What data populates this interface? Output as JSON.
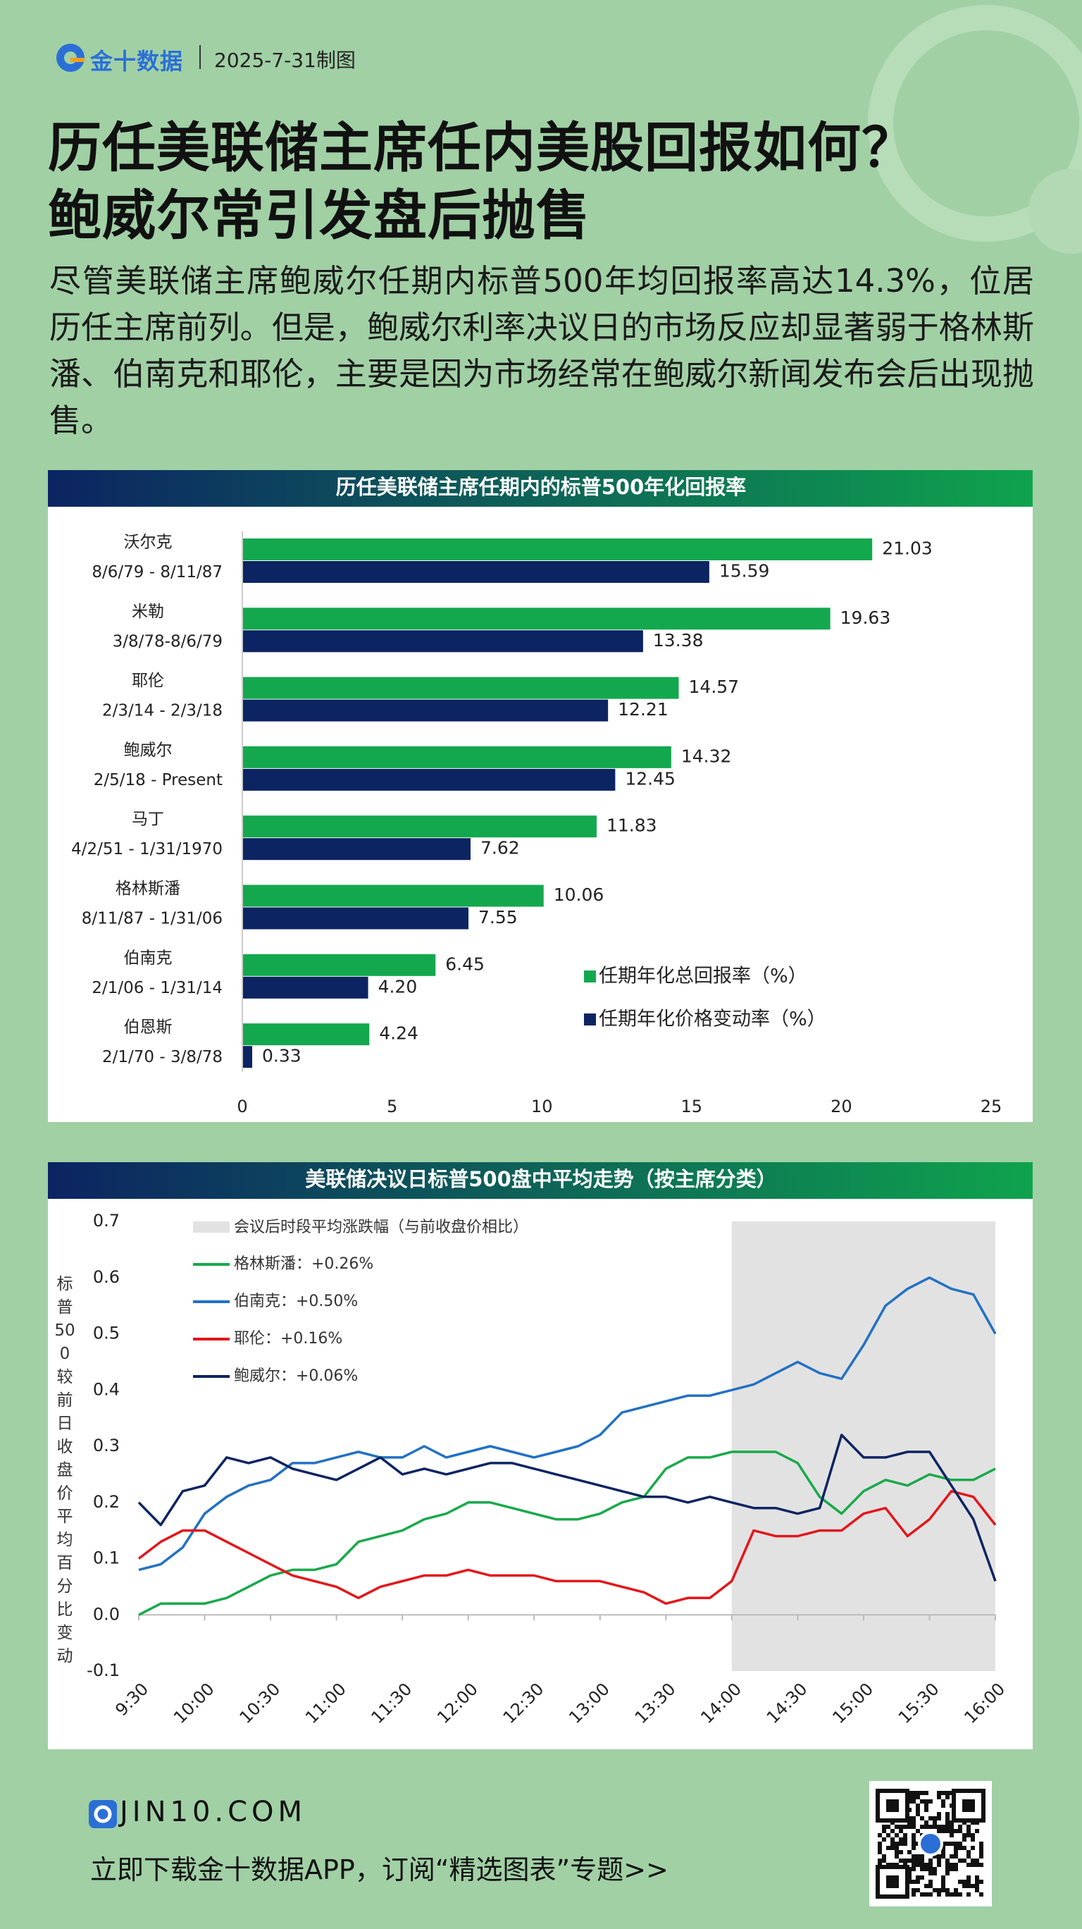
{
  "header": {
    "brand": "金十数据",
    "date": "2025-7-31制图",
    "title": [
      "历任美联储主席任内美股回报如何？",
      "鲍威尔常引发盘后抛售"
    ],
    "summary": "尽管美联储主席鲍威尔任期内标普500年均回报率高达14.3%，位居历任主席前列。但是，鲍威尔利率决议日的市场反应却显著弱于格林斯潘、伯南克和耶伦，主要是因为市场经常在鲍威尔新闻发布会后出现抛售。"
  },
  "chart_data": [
    {
      "type": "bar",
      "orientation": "horizontal",
      "title": "历任美联储主席任期内的标普500年化回报率",
      "categories": [
        "沃尔克",
        "米勒",
        "耶伦",
        "鲍威尔",
        "马丁",
        "格林斯潘",
        "伯南克",
        "伯恩斯"
      ],
      "periods": [
        "8/6/79 - 8/11/87",
        "3/8/78-8/6/79",
        "2/3/14 - 2/3/18",
        "2/5/18 - Present",
        "4/2/51 - 1/31/1970",
        "8/11/87 - 1/31/06",
        "2/1/06 - 1/31/14",
        "2/1/70 - 3/8/78"
      ],
      "series": [
        {
          "name": "任期年化总回报率（%）",
          "color": "#14a84e",
          "values": [
            21.03,
            19.63,
            14.57,
            14.32,
            11.83,
            10.06,
            6.45,
            4.24
          ]
        },
        {
          "name": "任期年化价格变动率（%）",
          "color": "#0c2462",
          "values": [
            15.59,
            13.38,
            12.21,
            12.45,
            7.62,
            7.55,
            4.2,
            0.33
          ],
          "value_labels": [
            "15.59",
            "13.38",
            "12.21",
            "12.45",
            "7.62",
            "7.55",
            "4.20",
            "0.33"
          ]
        }
      ],
      "xlim": [
        0,
        25
      ],
      "xticks": [
        0,
        5,
        10,
        15,
        20,
        25
      ],
      "grid": false,
      "legend": "lower-right"
    },
    {
      "type": "line",
      "title": "美联储决议日标普500盘中平均走势（按主席分类）",
      "y_label": "标普500较前日收盘价平均百分比变动",
      "x": [
        "9:30",
        "9:40",
        "9:50",
        "10:00",
        "10:10",
        "10:20",
        "10:30",
        "10:40",
        "10:50",
        "11:00",
        "11:10",
        "11:20",
        "11:30",
        "11:40",
        "11:50",
        "12:00",
        "12:10",
        "12:20",
        "12:30",
        "12:40",
        "12:50",
        "13:00",
        "13:10",
        "13:20",
        "13:30",
        "13:40",
        "13:50",
        "14:00",
        "14:10",
        "14:20",
        "14:30",
        "14:40",
        "14:50",
        "15:00",
        "15:10",
        "15:20",
        "15:30",
        "15:40",
        "15:50",
        "16:00"
      ],
      "xticks": [
        "9:30",
        "10:00",
        "10:30",
        "11:00",
        "11:30",
        "12:00",
        "12:30",
        "13:00",
        "13:30",
        "14:00",
        "14:30",
        "15:00",
        "15:30",
        "16:00"
      ],
      "shaded_region": {
        "from": "14:00",
        "to": "16:00",
        "label": "会议后时段平均涨跌幅（与前收盘价相比）",
        "color": "#e2e2e2"
      },
      "series": [
        {
          "name": "格林斯潘：+0.26%",
          "color": "#19a94b",
          "values": [
            0.0,
            0.02,
            0.02,
            0.02,
            0.03,
            0.05,
            0.07,
            0.08,
            0.08,
            0.09,
            0.13,
            0.14,
            0.15,
            0.17,
            0.18,
            0.2,
            0.2,
            0.19,
            0.18,
            0.17,
            0.17,
            0.18,
            0.2,
            0.21,
            0.26,
            0.28,
            0.28,
            0.29,
            0.29,
            0.29,
            0.27,
            0.21,
            0.18,
            0.22,
            0.24,
            0.23,
            0.25,
            0.24,
            0.24,
            0.26
          ]
        },
        {
          "name": "伯南克：+0.50%",
          "color": "#2271c3",
          "values": [
            0.08,
            0.09,
            0.12,
            0.18,
            0.21,
            0.23,
            0.24,
            0.27,
            0.27,
            0.28,
            0.29,
            0.28,
            0.28,
            0.3,
            0.28,
            0.29,
            0.3,
            0.29,
            0.28,
            0.29,
            0.3,
            0.32,
            0.36,
            0.37,
            0.38,
            0.39,
            0.39,
            0.4,
            0.41,
            0.43,
            0.45,
            0.43,
            0.42,
            0.48,
            0.55,
            0.58,
            0.6,
            0.58,
            0.57,
            0.5
          ]
        },
        {
          "name": "耶伦：+0.16%",
          "color": "#e3161b",
          "values": [
            0.1,
            0.13,
            0.15,
            0.15,
            0.13,
            0.11,
            0.09,
            0.07,
            0.06,
            0.05,
            0.03,
            0.05,
            0.06,
            0.07,
            0.07,
            0.08,
            0.07,
            0.07,
            0.07,
            0.06,
            0.06,
            0.06,
            0.05,
            0.04,
            0.02,
            0.03,
            0.03,
            0.06,
            0.15,
            0.14,
            0.14,
            0.15,
            0.15,
            0.18,
            0.19,
            0.14,
            0.17,
            0.22,
            0.21,
            0.16
          ]
        },
        {
          "name": "鲍威尔：+0.06%",
          "color": "#0c2462",
          "values": [
            0.2,
            0.16,
            0.22,
            0.23,
            0.28,
            0.27,
            0.28,
            0.26,
            0.25,
            0.24,
            0.26,
            0.28,
            0.25,
            0.26,
            0.25,
            0.26,
            0.27,
            0.27,
            0.26,
            0.25,
            0.24,
            0.23,
            0.22,
            0.21,
            0.21,
            0.2,
            0.21,
            0.2,
            0.19,
            0.19,
            0.18,
            0.19,
            0.32,
            0.28,
            0.28,
            0.29,
            0.29,
            0.23,
            0.17,
            0.06
          ]
        }
      ],
      "ylim": [
        -0.1,
        0.7
      ],
      "yticks": [
        -0.1,
        {
          "value": 0,
          "label": "0.0"
        },
        0.1,
        0.2,
        0.3,
        0.4,
        0.5,
        0.6,
        0.7
      ],
      "grid": false,
      "legend": "upper-left"
    }
  ],
  "footer": {
    "site": "JIN10.COM",
    "cta": "立即下载金十数据APP，订阅“精选图表”专题>>"
  }
}
